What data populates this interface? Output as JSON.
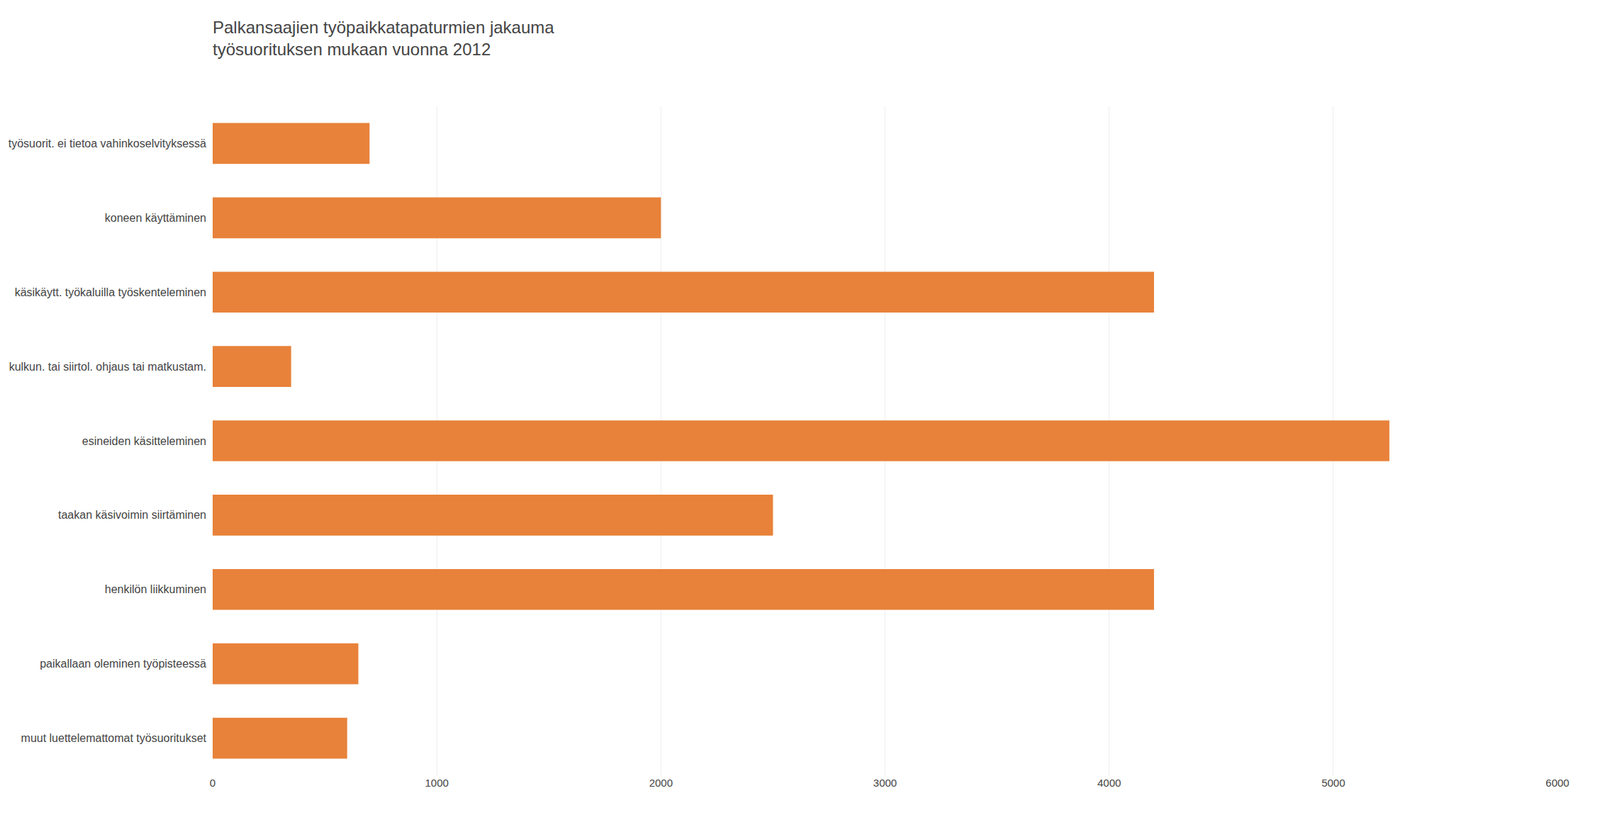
{
  "chart_data": {
    "type": "bar",
    "orientation": "horizontal",
    "title": "Palkansaajien työpaikkatapaturmien jakauma",
    "subtitle": "työsuorituksen mukaan vuonna 2012",
    "categories": [
      "työsuorit. ei tietoa vahinkoselvityksessä",
      "koneen käyttäminen",
      "käsikäytt. työkaluilla työskenteleminen",
      "kulkun. tai siirtol. ohjaus tai matkustam.",
      "esineiden käsitteleminen",
      "taakan käsivoimin siirtäminen",
      "henkilön liikkuminen",
      "paikallaan oleminen työpisteessä",
      "muut luettelemattomat työsuoritukset"
    ],
    "values": [
      700,
      2000,
      4200,
      350,
      5250,
      2500,
      4200,
      650,
      600
    ],
    "color": "#E8823A",
    "xlim": [
      0,
      6000
    ],
    "xticks": [
      0,
      1000,
      2000,
      3000,
      4000,
      5000,
      6000
    ],
    "grid": true
  }
}
